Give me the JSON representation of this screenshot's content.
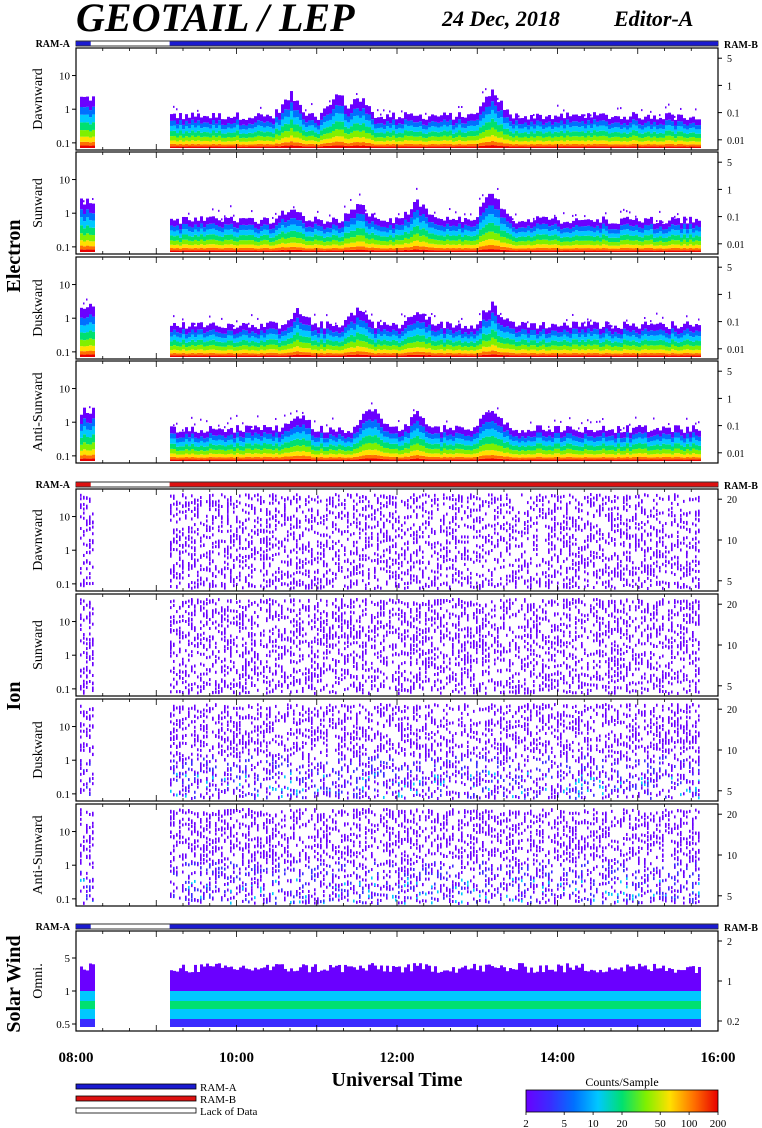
{
  "header": {
    "title": "GEOTAIL / LEP",
    "date": "24 Dec, 2018",
    "editor": "Editor-A"
  },
  "colors": {
    "ram_a": "#1a1ad0",
    "ram_b": "#dd1111",
    "lack": "#ffffff",
    "scale": [
      "#6a00ff",
      "#3a2cff",
      "#0070ff",
      "#00c8ff",
      "#00e070",
      "#80f000",
      "#ffe000",
      "#ff7000",
      "#e80000"
    ]
  },
  "chart_data": [
    {
      "type": "heatmap",
      "group": "Electron",
      "ram_label_left": "RAM-A",
      "ram_label_right": "RAM-B",
      "ram_bar": [
        {
          "from": "08:00",
          "to": "08:11",
          "status": "RAM-A"
        },
        {
          "from": "08:11",
          "to": "09:10",
          "status": "Lack of Data"
        },
        {
          "from": "09:10",
          "to": "16:00",
          "status": "RAM-A"
        }
      ],
      "data_gap": [
        "08:12",
        "09:10"
      ],
      "panels": [
        {
          "label": "Dawnward",
          "yticks_left": [
            "10",
            "1",
            "0.1"
          ],
          "yticks_right": [
            "5",
            "1",
            "0.1",
            "0.01"
          ],
          "events": [
            {
              "t": "10:40",
              "peak": 1.5
            },
            {
              "t": "11:15",
              "peak": 1.6
            },
            {
              "t": "11:30",
              "peak": 1.4
            },
            {
              "t": "13:10",
              "peak": 1.8
            }
          ]
        },
        {
          "label": "Sunward",
          "yticks_left": [
            "10",
            "1",
            "0.1"
          ],
          "yticks_right": [
            "5",
            "1",
            "0.1",
            "0.01"
          ],
          "events": [
            {
              "t": "10:40",
              "peak": 1.0
            },
            {
              "t": "11:30",
              "peak": 1.1
            },
            {
              "t": "12:15",
              "peak": 1.3
            },
            {
              "t": "13:10",
              "peak": 2.0
            }
          ]
        },
        {
          "label": "Duskward",
          "yticks_left": [
            "10",
            "1",
            "0.1"
          ],
          "yticks_right": [
            "5",
            "1",
            "0.1",
            "0.01"
          ],
          "events": [
            {
              "t": "10:45",
              "peak": 1.0
            },
            {
              "t": "11:30",
              "peak": 1.2
            },
            {
              "t": "12:15",
              "peak": 0.9
            },
            {
              "t": "13:10",
              "peak": 1.5
            }
          ]
        },
        {
          "label": "Anti-Sunward",
          "yticks_left": [
            "10",
            "1",
            "0.1"
          ],
          "yticks_right": [
            "5",
            "1",
            "0.1",
            "0.01"
          ],
          "events": [
            {
              "t": "10:45",
              "peak": 1.0
            },
            {
              "t": "11:40",
              "peak": 1.6
            },
            {
              "t": "12:15",
              "peak": 1.1
            },
            {
              "t": "13:10",
              "peak": 1.5
            }
          ]
        }
      ]
    },
    {
      "type": "heatmap",
      "group": "Ion",
      "ram_label_left": "RAM-A",
      "ram_label_right": "RAM-B",
      "ram_bar": [
        {
          "from": "08:00",
          "to": "08:11",
          "status": "RAM-B"
        },
        {
          "from": "08:11",
          "to": "09:10",
          "status": "Lack of Data"
        },
        {
          "from": "09:10",
          "to": "16:00",
          "status": "RAM-B"
        }
      ],
      "data_gap": [
        "08:12",
        "09:10"
      ],
      "panels": [
        {
          "label": "Dawnward",
          "yticks_left": [
            "10",
            "1",
            "0.1"
          ],
          "yticks_right": [
            "20",
            "10",
            "5"
          ]
        },
        {
          "label": "Sunward",
          "yticks_left": [
            "10",
            "1",
            "0.1"
          ],
          "yticks_right": [
            "20",
            "10",
            "5"
          ]
        },
        {
          "label": "Duskward",
          "yticks_left": [
            "10",
            "1",
            "0.1"
          ],
          "yticks_right": [
            "20",
            "10",
            "5"
          ]
        },
        {
          "label": "Anti-Sunward",
          "yticks_left": [
            "10",
            "1",
            "0.1"
          ],
          "yticks_right": [
            "20",
            "10",
            "5"
          ]
        }
      ]
    },
    {
      "type": "heatmap",
      "group": "Solar Wind",
      "ram_label_left": "RAM-A",
      "ram_label_right": "RAM-B",
      "ram_bar": [
        {
          "from": "08:00",
          "to": "08:11",
          "status": "RAM-A"
        },
        {
          "from": "08:11",
          "to": "09:10",
          "status": "Lack of Data"
        },
        {
          "from": "09:10",
          "to": "16:00",
          "status": "RAM-A"
        }
      ],
      "data_gap": [
        "08:12",
        "09:10"
      ],
      "panels": [
        {
          "label": "Omni.",
          "yticks_left": [
            "5",
            "1",
            "0.5"
          ],
          "yticks_right": [
            "2",
            "1",
            "0.2"
          ]
        }
      ]
    }
  ],
  "x_axis": {
    "label": "Universal Time",
    "range": [
      "08:00",
      "16:00"
    ],
    "ticks": [
      "08:00",
      "10:00",
      "12:00",
      "14:00",
      "16:00"
    ]
  },
  "legend": {
    "items": [
      {
        "label": "RAM-A",
        "color": "#1a1ad0"
      },
      {
        "label": "RAM-B",
        "color": "#dd1111"
      },
      {
        "label": "Lack of Data",
        "color": "#ffffff"
      }
    ]
  },
  "colorbar": {
    "title": "Counts/Sample",
    "ticks": [
      "2",
      "5",
      "10",
      "20",
      "50",
      "100",
      "200"
    ]
  }
}
